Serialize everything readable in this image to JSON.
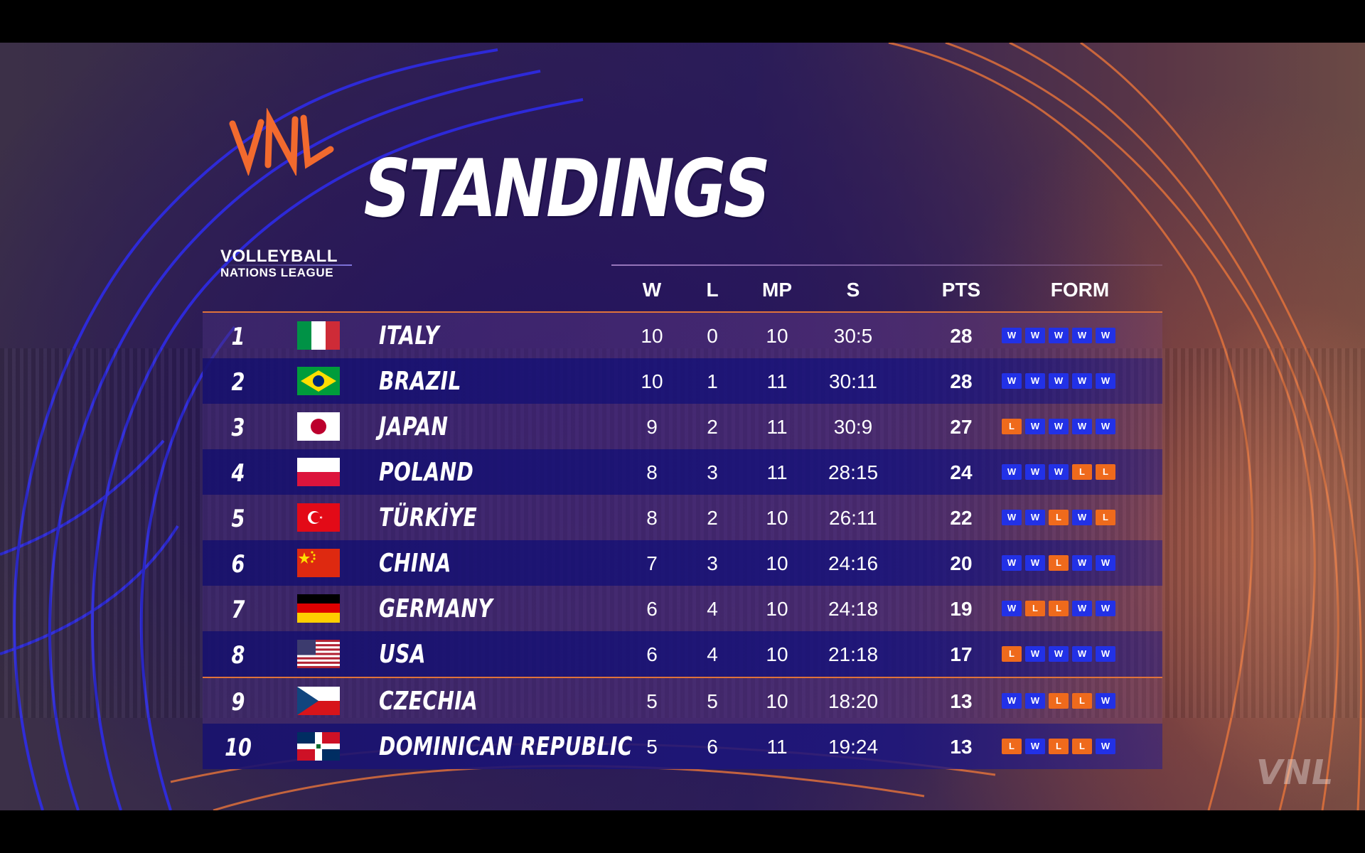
{
  "logo": {
    "mark": "VNL",
    "line1": "VOLLEYBALL",
    "line2": "NATIONS LEAGUE",
    "colors": {
      "mark": "#f26a2e",
      "text": "#ffffff"
    }
  },
  "title": "STANDINGS",
  "columns": {
    "w": "W",
    "l": "L",
    "mp": "MP",
    "s": "S",
    "pts": "PTS",
    "form": "FORM"
  },
  "rows": [
    {
      "rank": "1",
      "team": "ITALY",
      "flag": "italy-flag",
      "w": "10",
      "l": "0",
      "mp": "10",
      "s": "30:5",
      "pts": "28",
      "form": [
        "W",
        "W",
        "W",
        "W",
        "W"
      ]
    },
    {
      "rank": "2",
      "team": "BRAZIL",
      "flag": "brazil-flag",
      "w": "10",
      "l": "1",
      "mp": "11",
      "s": "30:11",
      "pts": "28",
      "form": [
        "W",
        "W",
        "W",
        "W",
        "W"
      ]
    },
    {
      "rank": "3",
      "team": "JAPAN",
      "flag": "japan-flag",
      "w": "9",
      "l": "2",
      "mp": "11",
      "s": "30:9",
      "pts": "27",
      "form": [
        "L",
        "W",
        "W",
        "W",
        "W"
      ]
    },
    {
      "rank": "4",
      "team": "POLAND",
      "flag": "poland-flag",
      "w": "8",
      "l": "3",
      "mp": "11",
      "s": "28:15",
      "pts": "24",
      "form": [
        "W",
        "W",
        "W",
        "L",
        "L"
      ]
    },
    {
      "rank": "5",
      "team": "TÜRKİYE",
      "flag": "turkiye-flag",
      "w": "8",
      "l": "2",
      "mp": "10",
      "s": "26:11",
      "pts": "22",
      "form": [
        "W",
        "W",
        "L",
        "W",
        "L"
      ]
    },
    {
      "rank": "6",
      "team": "CHINA",
      "flag": "china-flag",
      "w": "7",
      "l": "3",
      "mp": "10",
      "s": "24:16",
      "pts": "20",
      "form": [
        "W",
        "W",
        "L",
        "W",
        "W"
      ]
    },
    {
      "rank": "7",
      "team": "GERMANY",
      "flag": "germany-flag",
      "w": "6",
      "l": "4",
      "mp": "10",
      "s": "24:18",
      "pts": "19",
      "form": [
        "W",
        "L",
        "L",
        "W",
        "W"
      ]
    },
    {
      "rank": "8",
      "team": "USA",
      "flag": "usa-flag",
      "w": "6",
      "l": "4",
      "mp": "10",
      "s": "21:18",
      "pts": "17",
      "form": [
        "L",
        "W",
        "W",
        "W",
        "W"
      ]
    },
    {
      "rank": "9",
      "team": "CZECHIA",
      "flag": "czechia-flag",
      "w": "5",
      "l": "5",
      "mp": "10",
      "s": "18:20",
      "pts": "13",
      "form": [
        "W",
        "W",
        "L",
        "L",
        "W"
      ]
    },
    {
      "rank": "10",
      "team": "DOMINICAN REPUBLIC",
      "flag": "dominican-republic-flag",
      "w": "5",
      "l": "6",
      "mp": "11",
      "s": "19:24",
      "pts": "13",
      "form": [
        "L",
        "W",
        "L",
        "L",
        "W"
      ]
    }
  ],
  "qualification_cutoff_after_rank": "8",
  "colors": {
    "win": "#2231e6",
    "loss": "#ef6a1c",
    "accent_rule": "#e0733a",
    "row_dark": "#1f178a",
    "row_light": "#5b3a82"
  },
  "watermark": "VNL"
}
